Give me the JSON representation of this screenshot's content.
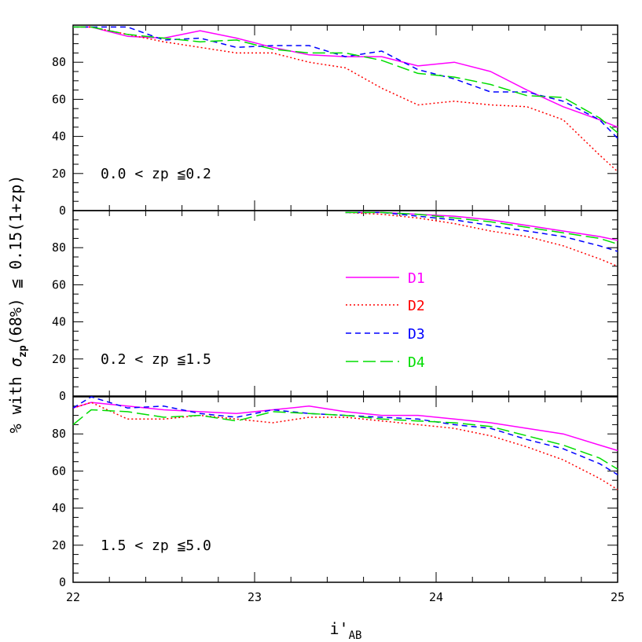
{
  "chart_data": {
    "type": "line",
    "xlabel_main": "i'",
    "xlabel_sub": "AB",
    "ylabel_prefix": "% with  ",
    "ylabel_sigma": "σ",
    "ylabel_sub": "zp",
    "ylabel_suffix": "(68%) ≦ 0.15(1+zp)",
    "xlim": [
      22,
      25
    ],
    "ylim": [
      0,
      100
    ],
    "x_ticks": [
      "22",
      "23",
      "24",
      "25"
    ],
    "y_ticks": [
      "0",
      "20",
      "40",
      "60",
      "80"
    ],
    "legend": [
      {
        "name": "D1",
        "color": "#ff00ff",
        "dash": "solid"
      },
      {
        "name": "D2",
        "color": "#ff0000",
        "dash": "dotted"
      },
      {
        "name": "D3",
        "color": "#0000ff",
        "dash": "short-dash"
      },
      {
        "name": "D4",
        "color": "#00dd00",
        "dash": "long-dash"
      }
    ],
    "panels": [
      {
        "label": "0.0 < zp ≦0.2",
        "series": [
          {
            "name": "D1",
            "x": [
              22.0,
              22.1,
              22.3,
              22.5,
              22.7,
              22.9,
              23.1,
              23.3,
              23.5,
              23.7,
              23.9,
              24.1,
              24.3,
              24.5,
              24.7,
              24.9,
              25.0
            ],
            "y": [
              99,
              99,
              94,
              93,
              97,
              93,
              88,
              84,
              83,
              83,
              78,
              80,
              75,
              65,
              56,
              49,
              45
            ]
          },
          {
            "name": "D2",
            "x": [
              22.0,
              22.1,
              22.3,
              22.5,
              22.7,
              22.9,
              23.1,
              23.3,
              23.5,
              23.7,
              23.9,
              24.1,
              24.3,
              24.5,
              24.7,
              24.9,
              25.0
            ],
            "y": [
              99,
              99,
              95,
              91,
              88,
              85,
              85,
              80,
              77,
              66,
              57,
              59,
              57,
              56,
              49,
              30,
              21
            ]
          },
          {
            "name": "D3",
            "x": [
              22.0,
              22.1,
              22.3,
              22.5,
              22.7,
              22.9,
              23.1,
              23.3,
              23.5,
              23.7,
              23.9,
              24.1,
              24.3,
              24.5,
              24.7,
              24.9,
              25.0
            ],
            "y": [
              99,
              99,
              99,
              92,
              93,
              88,
              89,
              89,
              83,
              86,
              76,
              71,
              64,
              64,
              59,
              49,
              39
            ]
          },
          {
            "name": "D4",
            "x": [
              22.0,
              22.1,
              22.3,
              22.5,
              22.7,
              22.9,
              23.1,
              23.3,
              23.5,
              23.7,
              23.9,
              24.1,
              24.3,
              24.5,
              24.7,
              24.9,
              25.0
            ],
            "y": [
              99,
              99,
              95,
              93,
              91,
              92,
              87,
              85,
              85,
              81,
              74,
              72,
              68,
              62,
              61,
              50,
              42
            ]
          }
        ]
      },
      {
        "label": "0.2 < zp ≦1.5",
        "series": [
          {
            "name": "D1",
            "x": [
              23.5,
              23.7,
              23.9,
              24.1,
              24.3,
              24.5,
              24.7,
              24.9,
              25.0
            ],
            "y": [
              99,
              99,
              98,
              97,
              95,
              92,
              89,
              86,
              84
            ]
          },
          {
            "name": "D2",
            "x": [
              23.5,
              23.7,
              23.9,
              24.1,
              24.3,
              24.5,
              24.7,
              24.9,
              25.0
            ],
            "y": [
              99,
              98,
              96,
              93,
              89,
              86,
              81,
              74,
              70
            ]
          },
          {
            "name": "D3",
            "x": [
              23.5,
              23.7,
              23.9,
              24.1,
              24.3,
              24.5,
              24.7,
              24.9,
              25.0
            ],
            "y": [
              99,
              99,
              97,
              95,
              92,
              89,
              86,
              81,
              78
            ]
          },
          {
            "name": "D4",
            "x": [
              23.5,
              23.7,
              23.9,
              24.1,
              24.3,
              24.5,
              24.7,
              24.9,
              25.0
            ],
            "y": [
              99,
              99,
              98,
              96,
              94,
              91,
              88,
              85,
              82
            ]
          }
        ]
      },
      {
        "label": "1.5 < zp ≦5.0",
        "series": [
          {
            "name": "D1",
            "x": [
              22.0,
              22.1,
              22.3,
              22.5,
              22.7,
              22.9,
              23.1,
              23.3,
              23.5,
              23.7,
              23.9,
              24.1,
              24.3,
              24.5,
              24.7,
              24.9,
              25.0
            ],
            "y": [
              94,
              97,
              95,
              93,
              92,
              91,
              93,
              95,
              92,
              90,
              90,
              88,
              86,
              83,
              80,
              74,
              71
            ]
          },
          {
            "name": "D2",
            "x": [
              22.0,
              22.1,
              22.3,
              22.5,
              22.7,
              22.9,
              23.1,
              23.3,
              23.5,
              23.7,
              23.9,
              24.1,
              24.3,
              24.5,
              24.7,
              24.9,
              25.0
            ],
            "y": [
              94,
              97,
              88,
              88,
              90,
              88,
              86,
              89,
              89,
              87,
              85,
              83,
              79,
              73,
              66,
              56,
              50
            ]
          },
          {
            "name": "D3",
            "x": [
              22.0,
              22.1,
              22.3,
              22.5,
              22.7,
              22.9,
              23.1,
              23.3,
              23.5,
              23.7,
              23.9,
              24.1,
              24.3,
              24.5,
              24.7,
              24.9,
              25.0
            ],
            "y": [
              94,
              100,
              94,
              95,
              91,
              89,
              93,
              91,
              90,
              89,
              88,
              85,
              83,
              77,
              72,
              64,
              58
            ]
          },
          {
            "name": "D4",
            "x": [
              22.0,
              22.1,
              22.3,
              22.5,
              22.7,
              22.9,
              23.1,
              23.3,
              23.5,
              23.7,
              23.9,
              24.1,
              24.3,
              24.5,
              24.7,
              24.9,
              25.0
            ],
            "y": [
              85,
              93,
              92,
              89,
              90,
              87,
              92,
              91,
              90,
              88,
              87,
              86,
              84,
              79,
              74,
              67,
              61
            ]
          }
        ]
      }
    ]
  }
}
